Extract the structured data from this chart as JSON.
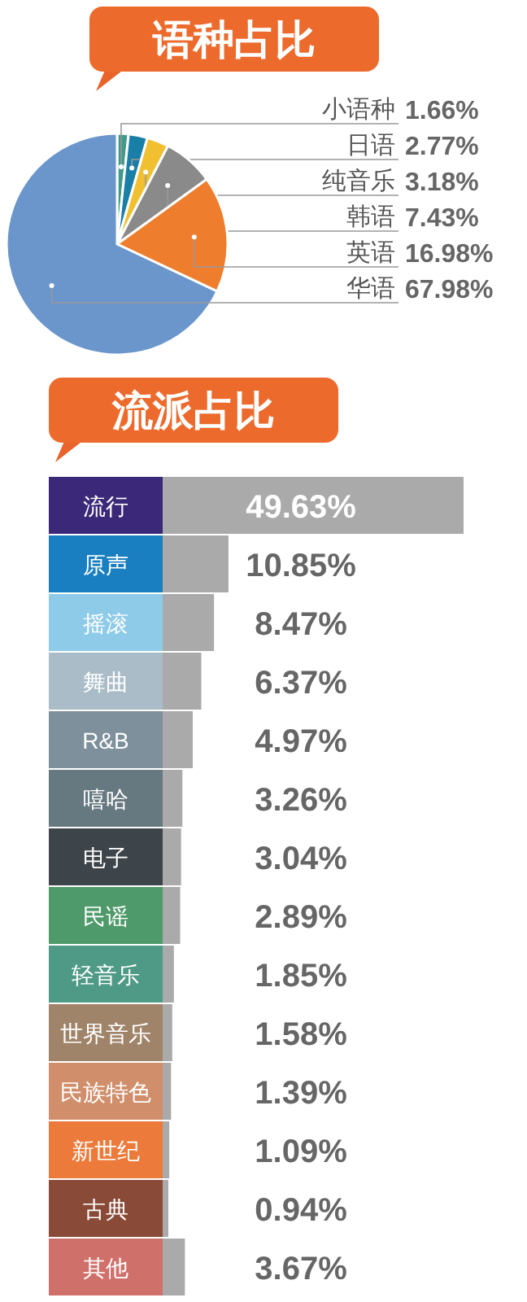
{
  "chart_data": [
    {
      "type": "pie",
      "title": "语种占比",
      "categories": [
        "小语种",
        "日语",
        "纯音乐",
        "韩语",
        "英语",
        "华语"
      ],
      "values": [
        1.66,
        2.77,
        3.18,
        7.43,
        16.98,
        67.98
      ],
      "colors": [
        "#3f9a8a",
        "#1a7fa6",
        "#f0c030",
        "#8a8a8a",
        "#ee7d2d",
        "#6a96cc"
      ],
      "value_labels": [
        "1.66%",
        "2.77%",
        "3.18%",
        "7.43%",
        "16.98%",
        "67.98%"
      ]
    },
    {
      "type": "bar",
      "orientation": "horizontal",
      "title": "流派占比",
      "categories": [
        "流行",
        "原声",
        "摇滚",
        "舞曲",
        "R&B",
        "嘻哈",
        "电子",
        "民谣",
        "轻音乐",
        "世界音乐",
        "民族特色",
        "新世纪",
        "古典",
        "其他"
      ],
      "values": [
        49.63,
        10.85,
        8.47,
        6.37,
        4.97,
        3.26,
        3.04,
        2.89,
        1.85,
        1.58,
        1.39,
        1.09,
        0.94,
        3.67
      ],
      "color": "#aaaaaa",
      "value_labels": [
        "49.63%",
        "10.85%",
        "8.47%",
        "6.37%",
        "4.97%",
        "3.26%",
        "3.04%",
        "2.89%",
        "1.85%",
        "1.58%",
        "1.39%",
        "1.09%",
        "0.94%",
        "3.67%"
      ]
    }
  ]
}
